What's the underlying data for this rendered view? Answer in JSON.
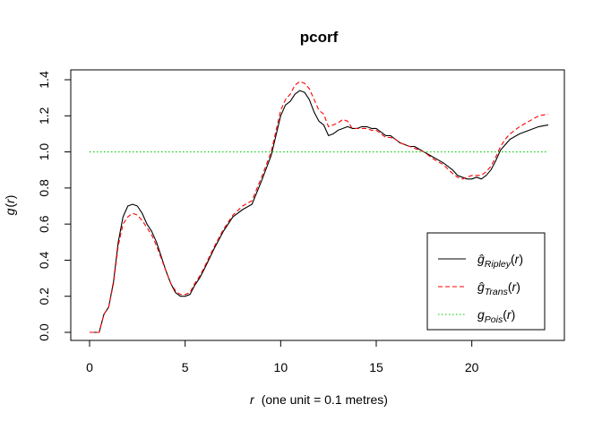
{
  "chart_data": {
    "type": "line",
    "title": "pcorf",
    "xlabel": {
      "var": "r",
      "rest": "(one unit = 0.1 metres)"
    },
    "ylabel": {
      "fn": "g",
      "arg": "r"
    },
    "xlim": [
      0,
      24
    ],
    "ylim": [
      0,
      1.4
    ],
    "xticks": [
      "0",
      "5",
      "10",
      "15",
      "20"
    ],
    "yticks": [
      "0.0",
      "0.2",
      "0.4",
      "0.6",
      "0.8",
      "1.0",
      "1.2",
      "1.4"
    ],
    "legend_position": "bottom-right",
    "series": [
      {
        "name": "Ripley",
        "legend": {
          "fn": "ĝ",
          "sub": "Ripley",
          "arg": "r"
        },
        "color": "#000000",
        "dash": "solid",
        "x": [
          0,
          0.25,
          0.5,
          0.75,
          1.0,
          1.25,
          1.5,
          1.75,
          2.0,
          2.25,
          2.5,
          2.75,
          3.0,
          3.25,
          3.5,
          3.75,
          4.0,
          4.25,
          4.5,
          4.75,
          5.0,
          5.25,
          5.5,
          5.75,
          6.0,
          6.5,
          7.0,
          7.5,
          8.0,
          8.5,
          9.0,
          9.5,
          10.0,
          10.25,
          10.5,
          10.75,
          11.0,
          11.25,
          11.5,
          11.75,
          12.0,
          12.25,
          12.5,
          12.75,
          13.0,
          13.25,
          13.5,
          13.75,
          14.0,
          14.25,
          14.5,
          14.75,
          15.0,
          15.25,
          15.5,
          15.75,
          16.0,
          16.25,
          16.5,
          16.75,
          17.0,
          17.5,
          18.0,
          18.5,
          19.0,
          19.25,
          19.5,
          19.75,
          20.0,
          20.25,
          20.5,
          20.75,
          21.0,
          21.25,
          21.5,
          21.75,
          22.0,
          22.5,
          23.0,
          23.5,
          24.0
        ],
        "y": [
          0.0,
          0.0,
          0.0,
          0.1,
          0.14,
          0.28,
          0.5,
          0.64,
          0.7,
          0.71,
          0.7,
          0.66,
          0.6,
          0.56,
          0.5,
          0.42,
          0.34,
          0.27,
          0.22,
          0.2,
          0.2,
          0.21,
          0.26,
          0.3,
          0.35,
          0.46,
          0.56,
          0.64,
          0.68,
          0.71,
          0.84,
          0.98,
          1.2,
          1.26,
          1.28,
          1.32,
          1.34,
          1.33,
          1.29,
          1.22,
          1.17,
          1.15,
          1.09,
          1.1,
          1.12,
          1.13,
          1.14,
          1.13,
          1.13,
          1.14,
          1.14,
          1.13,
          1.13,
          1.11,
          1.09,
          1.09,
          1.07,
          1.05,
          1.04,
          1.03,
          1.03,
          1.0,
          0.97,
          0.94,
          0.9,
          0.87,
          0.86,
          0.85,
          0.85,
          0.86,
          0.85,
          0.87,
          0.9,
          0.95,
          1.01,
          1.04,
          1.07,
          1.1,
          1.12,
          1.14,
          1.15
        ]
      },
      {
        "name": "Trans",
        "legend": {
          "fn": "ĝ",
          "sub": "Trans",
          "arg": "r"
        },
        "color": "#ff0000",
        "dash": "dashed",
        "x": [
          0,
          0.25,
          0.5,
          0.75,
          1.0,
          1.25,
          1.5,
          1.75,
          2.0,
          2.25,
          2.5,
          2.75,
          3.0,
          3.25,
          3.5,
          3.75,
          4.0,
          4.25,
          4.5,
          4.75,
          5.0,
          5.25,
          5.5,
          5.75,
          6.0,
          6.5,
          7.0,
          7.5,
          8.0,
          8.5,
          9.0,
          9.5,
          10.0,
          10.25,
          10.5,
          10.75,
          11.0,
          11.25,
          11.5,
          11.75,
          12.0,
          12.25,
          12.5,
          12.75,
          13.0,
          13.25,
          13.5,
          13.75,
          14.0,
          14.25,
          14.5,
          14.75,
          15.0,
          15.25,
          15.5,
          15.75,
          16.0,
          16.25,
          16.5,
          16.75,
          17.0,
          17.5,
          18.0,
          18.5,
          19.0,
          19.25,
          19.5,
          19.75,
          20.0,
          20.25,
          20.5,
          20.75,
          21.0,
          21.25,
          21.5,
          21.75,
          22.0,
          22.5,
          23.0,
          23.5,
          24.0
        ],
        "y": [
          0.0,
          0.0,
          0.0,
          0.1,
          0.14,
          0.27,
          0.48,
          0.6,
          0.64,
          0.66,
          0.65,
          0.62,
          0.58,
          0.54,
          0.48,
          0.41,
          0.34,
          0.27,
          0.23,
          0.21,
          0.21,
          0.22,
          0.27,
          0.31,
          0.36,
          0.47,
          0.57,
          0.65,
          0.7,
          0.73,
          0.86,
          1.0,
          1.23,
          1.29,
          1.32,
          1.37,
          1.39,
          1.38,
          1.35,
          1.29,
          1.23,
          1.21,
          1.14,
          1.15,
          1.16,
          1.18,
          1.17,
          1.13,
          1.13,
          1.13,
          1.13,
          1.12,
          1.12,
          1.1,
          1.08,
          1.08,
          1.07,
          1.05,
          1.04,
          1.03,
          1.02,
          1.0,
          0.96,
          0.93,
          0.88,
          0.86,
          0.85,
          0.86,
          0.87,
          0.87,
          0.87,
          0.89,
          0.92,
          0.97,
          1.03,
          1.07,
          1.1,
          1.14,
          1.17,
          1.2,
          1.21
        ]
      },
      {
        "name": "Pois",
        "legend": {
          "fn": "g",
          "sub": "Pois",
          "arg": "r"
        },
        "color": "#00cd00",
        "dash": "dotted",
        "x": [
          0,
          24
        ],
        "y": [
          1.0,
          1.0
        ]
      }
    ]
  }
}
